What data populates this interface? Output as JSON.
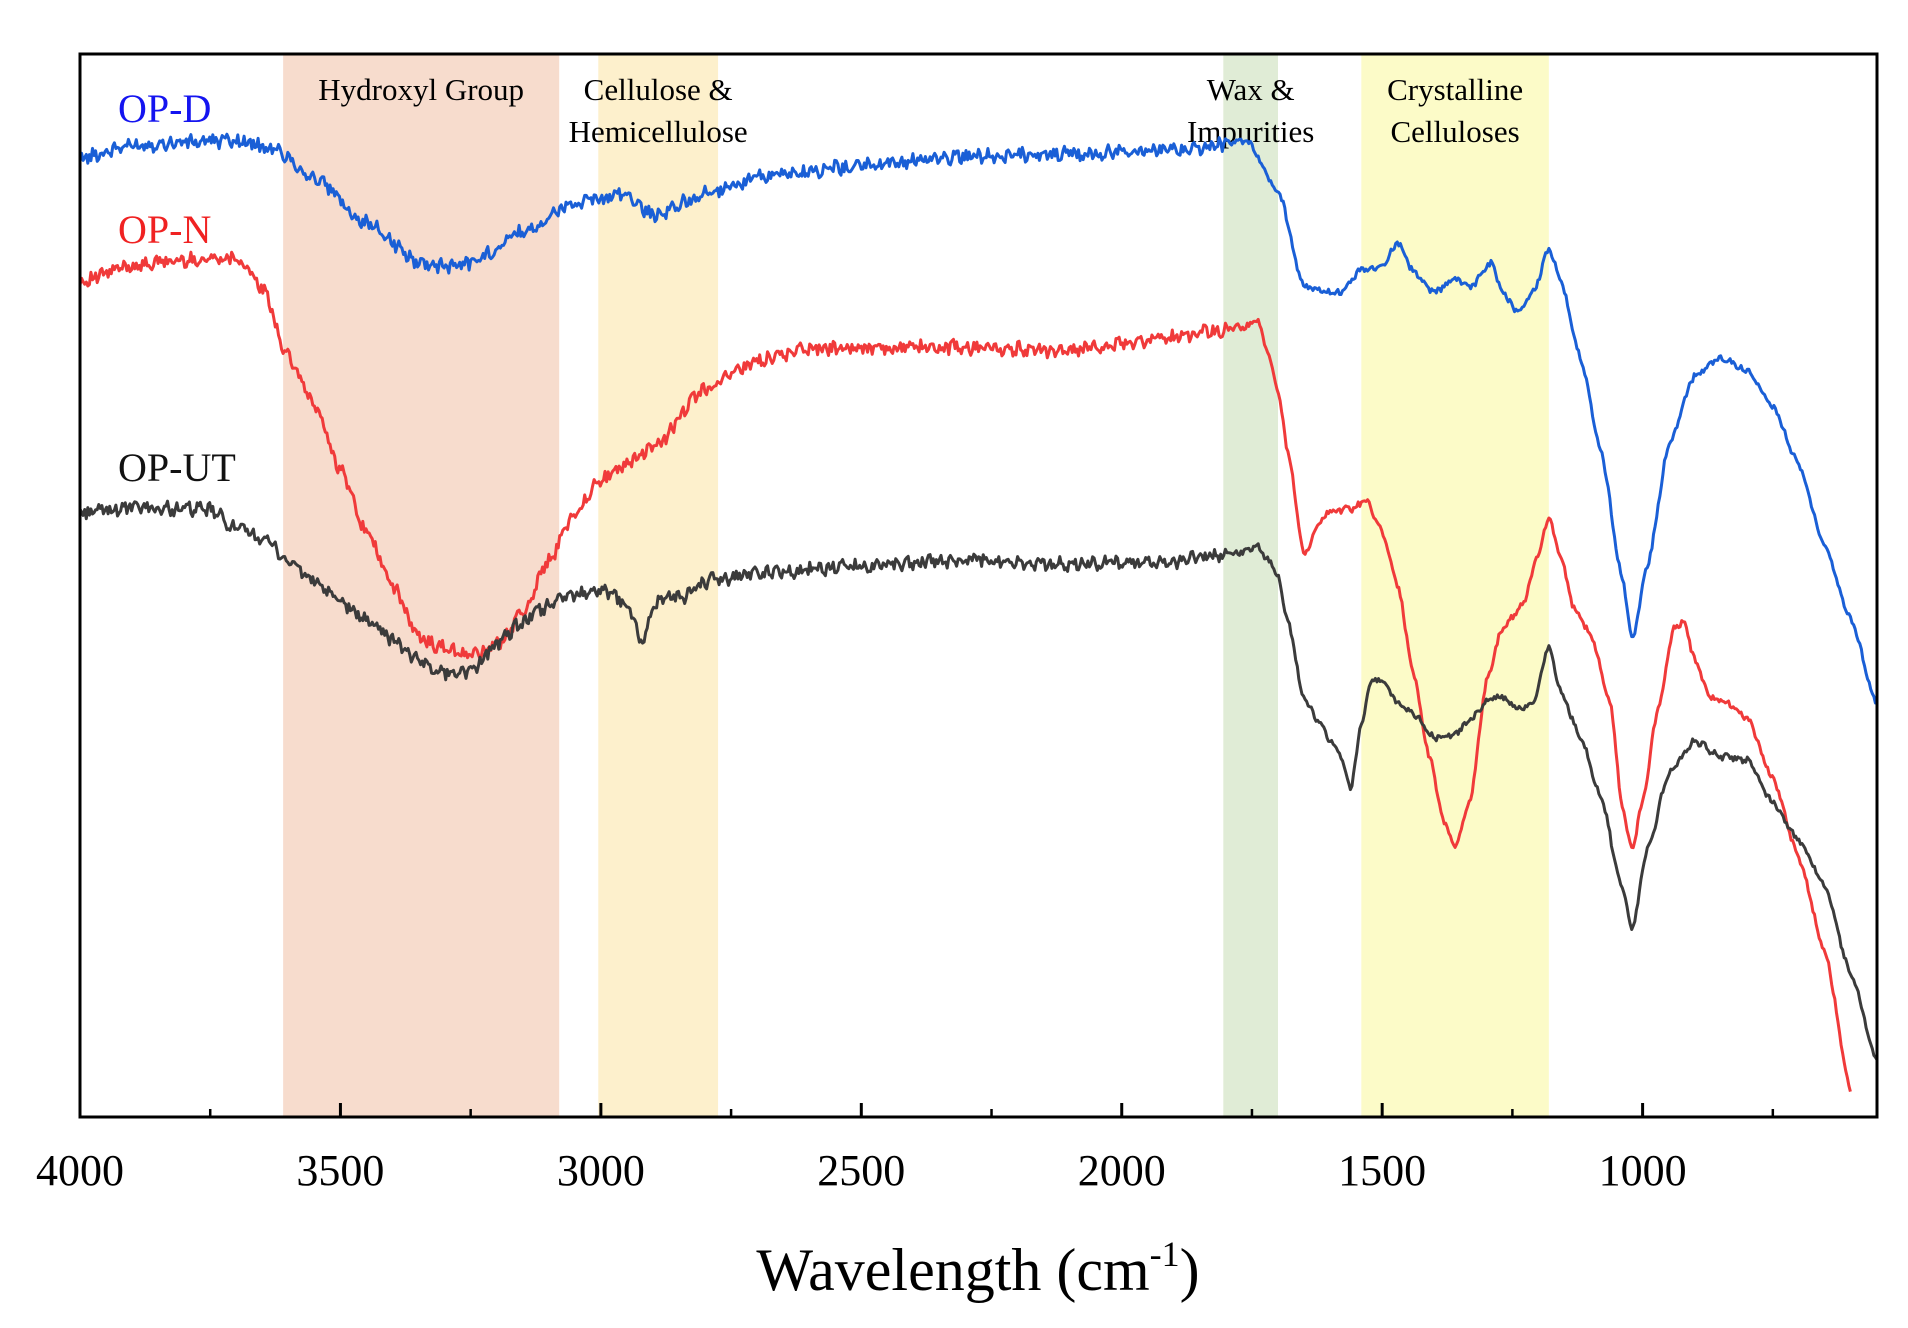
{
  "chart_data": {
    "type": "line",
    "title": "",
    "xlabel": "Wavelength (cm",
    "xlabel_sup": "-1",
    "xlabel_close": ")",
    "ylabel": "",
    "xlim": [
      4000,
      550
    ],
    "ylim": [
      0,
      100
    ],
    "x_ticks": [
      4000,
      3500,
      3000,
      2500,
      2000,
      1500,
      1000
    ],
    "grid": false,
    "bands": [
      {
        "name": "hydroxyl",
        "from": 3610,
        "to": 3080,
        "color": "#f7dccd",
        "label_lines": [
          "Hydroxyl Group"
        ]
      },
      {
        "name": "cellulose-hemicellulose",
        "from": 3005,
        "to": 2775,
        "color": "#fdf0cc",
        "label_lines": [
          "Cellulose &",
          "Hemicellulose"
        ]
      },
      {
        "name": "wax",
        "from": 1805,
        "to": 1700,
        "color": "#e0ecd6",
        "label_lines": [
          "Wax &",
          "Impurities"
        ]
      },
      {
        "name": "crystalline",
        "from": 1540,
        "to": 1180,
        "color": "#fcfbc8",
        "label_lines": [
          "Crystalline",
          "Celluloses"
        ]
      }
    ],
    "series": [
      {
        "name": "OP-D",
        "color": "#1a5fd6",
        "label_color": "#1414f0",
        "x": [
          4000,
          3900,
          3800,
          3700,
          3620,
          3550,
          3450,
          3350,
          3300,
          3250,
          3150,
          3050,
          2950,
          2900,
          2800,
          2700,
          2500,
          2300,
          2100,
          1900,
          1800,
          1760,
          1700,
          1650,
          1580,
          1540,
          1500,
          1470,
          1440,
          1400,
          1360,
          1330,
          1290,
          1270,
          1240,
          1210,
          1180,
          1160,
          1120,
          1080,
          1040,
          1020,
          990,
          950,
          900,
          850,
          800,
          750,
          700,
          650,
          600,
          550
        ],
        "y": [
          90.2,
          91.4,
          91.7,
          91.9,
          90.9,
          88.3,
          84.1,
          80.4,
          80.1,
          80.4,
          83.3,
          85.9,
          86.8,
          84.8,
          86.8,
          88.4,
          89.5,
          90.4,
          90.6,
          90.9,
          91.6,
          91.8,
          87.2,
          78.1,
          77.5,
          79.7,
          80.0,
          82.3,
          79.5,
          77.6,
          78.8,
          78.1,
          80.3,
          77.7,
          75.7,
          77.6,
          81.6,
          79.2,
          71.5,
          62.7,
          50.9,
          44.9,
          52.0,
          63.1,
          69.8,
          71.4,
          70.3,
          66.8,
          61.4,
          53.6,
          46.7,
          38.9
        ]
      },
      {
        "name": "OP-N",
        "color": "#f03a3a",
        "label_color": "#f02222",
        "x": [
          4000,
          3900,
          3800,
          3700,
          3650,
          3600,
          3550,
          3500,
          3450,
          3400,
          3350,
          3300,
          3250,
          3200,
          3150,
          3100,
          3050,
          3000,
          2900,
          2800,
          2700,
          2600,
          2500,
          2300,
          2100,
          1900,
          1800,
          1760,
          1740,
          1720,
          1700,
          1680,
          1650,
          1620,
          1600,
          1560,
          1530,
          1500,
          1470,
          1440,
          1410,
          1380,
          1360,
          1330,
          1300,
          1270,
          1230,
          1200,
          1180,
          1160,
          1130,
          1100,
          1060,
          1040,
          1020,
          1000,
          970,
          940,
          920,
          900,
          870,
          840,
          800,
          750,
          700,
          650,
          600
        ],
        "y": [
          78.6,
          80.1,
          80.6,
          80.9,
          78.0,
          71.4,
          67.0,
          60.9,
          55.0,
          50.0,
          45.1,
          44.1,
          43.4,
          44.4,
          47.4,
          52.4,
          56.9,
          60.0,
          62.9,
          68.5,
          71.1,
          72.3,
          72.3,
          72.4,
          72.1,
          73.4,
          74.1,
          74.4,
          75.0,
          72.0,
          68.4,
          62.3,
          53.0,
          55.9,
          57.0,
          57.2,
          58.0,
          55.0,
          50.0,
          41.8,
          34.0,
          27.5,
          25.4,
          30.0,
          40.9,
          45.9,
          48.2,
          53.0,
          56.4,
          53.0,
          47.6,
          45.4,
          38.5,
          29.3,
          25.2,
          29.7,
          38.5,
          46.0,
          46.6,
          43.0,
          39.6,
          38.9,
          37.6,
          31.9,
          24.3,
          15.5,
          2.3
        ]
      },
      {
        "name": "OP-UT",
        "color": "#3b3b3b",
        "label_color": "#111111",
        "x": [
          4000,
          3900,
          3800,
          3750,
          3700,
          3650,
          3600,
          3550,
          3500,
          3450,
          3400,
          3350,
          3300,
          3250,
          3200,
          3150,
          3100,
          3050,
          3000,
          2950,
          2920,
          2900,
          2880,
          2850,
          2800,
          2700,
          2500,
          2300,
          2100,
          1900,
          1800,
          1760,
          1740,
          1720,
          1700,
          1680,
          1650,
          1620,
          1600,
          1580,
          1560,
          1540,
          1520,
          1500,
          1470,
          1440,
          1400,
          1360,
          1330,
          1290,
          1270,
          1240,
          1210,
          1180,
          1160,
          1120,
          1080,
          1040,
          1020,
          990,
          950,
          900,
          850,
          800,
          750,
          700,
          650,
          600,
          550
        ],
        "y": [
          56.9,
          57.3,
          57.2,
          57.1,
          55.3,
          54.5,
          52.3,
          50.4,
          48.4,
          46.8,
          45.0,
          42.9,
          41.8,
          42.0,
          44.5,
          46.5,
          48.2,
          49.2,
          49.6,
          48.3,
          44.5,
          47.8,
          48.9,
          48.8,
          50.4,
          51.2,
          51.8,
          52.4,
          52.0,
          52.2,
          53.0,
          53.2,
          53.7,
          52.5,
          50.9,
          46.4,
          39.3,
          37.0,
          35.5,
          34.0,
          31.0,
          37.0,
          41.1,
          40.9,
          39.0,
          38.0,
          35.7,
          36.0,
          37.4,
          39.4,
          39.5,
          38.4,
          38.9,
          44.3,
          40.3,
          35.8,
          30.1,
          21.6,
          17.6,
          25.3,
          32.3,
          35.4,
          33.9,
          33.6,
          29.6,
          26.0,
          21.7,
          13.4,
          5.3
        ]
      }
    ]
  }
}
